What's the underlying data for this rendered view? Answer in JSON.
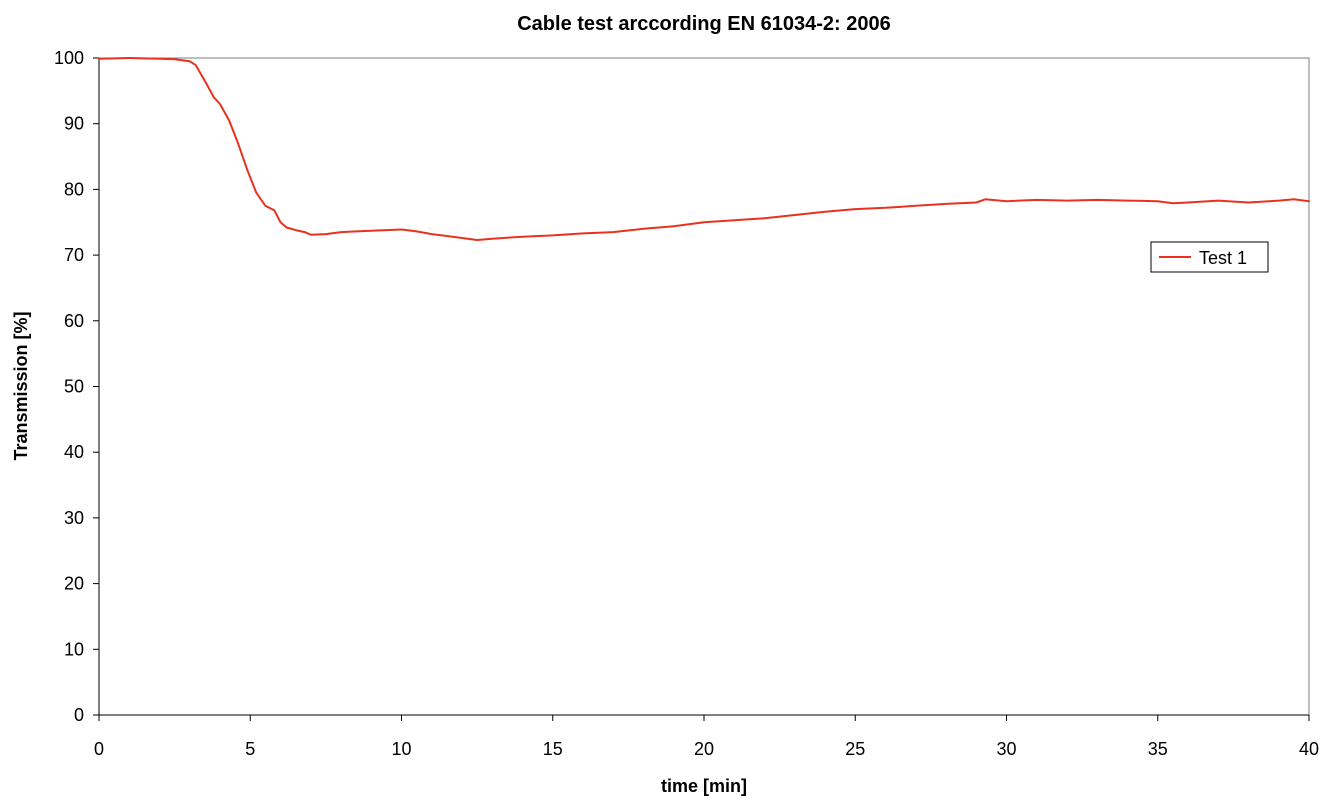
{
  "chart_data": {
    "type": "line",
    "title": "Cable test arccording EN 61034-2: 2006",
    "xlabel": "time [min]",
    "ylabel": "Transmission [%]",
    "xlim": [
      0,
      40
    ],
    "ylim": [
      0,
      100
    ],
    "x_ticks": [
      0,
      5,
      10,
      15,
      20,
      25,
      30,
      35,
      40
    ],
    "y_ticks": [
      0,
      10,
      20,
      30,
      40,
      50,
      60,
      70,
      80,
      90,
      100
    ],
    "grid": false,
    "legend_position": "right",
    "series": [
      {
        "name": "Test 1",
        "color": "#e8321e",
        "x": [
          0,
          1,
          2,
          2.5,
          3,
          3.2,
          3.5,
          3.8,
          4,
          4.3,
          4.6,
          4.9,
          5.2,
          5.5,
          5.8,
          6,
          6.2,
          6.5,
          6.8,
          7,
          7.5,
          8,
          8.5,
          9,
          9.5,
          10,
          10.5,
          11,
          11.5,
          12,
          12.5,
          13,
          14,
          15,
          16,
          17,
          18,
          19,
          20,
          21,
          22,
          23,
          24,
          25,
          26,
          27,
          28,
          29,
          29.3,
          30,
          31,
          32,
          33,
          34,
          35,
          35.5,
          36,
          37,
          38,
          39,
          39.5,
          40
        ],
        "values": [
          99.9,
          100,
          99.9,
          99.8,
          99.5,
          98.9,
          96.5,
          94,
          93,
          90.5,
          87,
          83,
          79.5,
          77.5,
          76.8,
          75,
          74.2,
          73.8,
          73.5,
          73.1,
          73.2,
          73.5,
          73.6,
          73.7,
          73.8,
          73.9,
          73.6,
          73.2,
          72.9,
          72.6,
          72.3,
          72.5,
          72.8,
          73,
          73.3,
          73.5,
          74,
          74.4,
          75,
          75.3,
          75.6,
          76.1,
          76.6,
          77,
          77.2,
          77.5,
          77.8,
          78,
          78.5,
          78.2,
          78.4,
          78.3,
          78.4,
          78.3,
          78.2,
          77.9,
          78,
          78.3,
          78,
          78.3,
          78.5,
          78.2
        ]
      }
    ]
  }
}
